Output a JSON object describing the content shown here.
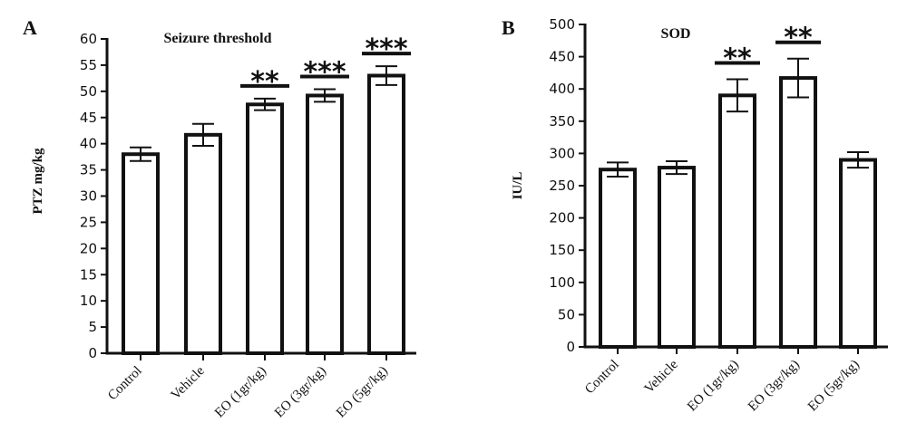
{
  "chart_data": [
    {
      "type": "bar",
      "panel_label": "A",
      "title": "Seizure threshold",
      "ylabel": "PTZ mg/kg",
      "xlabel": "",
      "ylim": [
        0,
        60
      ],
      "yticks": [
        0,
        5,
        10,
        15,
        20,
        25,
        30,
        35,
        40,
        45,
        50,
        55,
        60
      ],
      "categories": [
        "Control",
        "Vehicle",
        "EO (1gr/kg)",
        "EO (3gr/kg)",
        "EO (5gr/kg)"
      ],
      "values": [
        38,
        41.7,
        47.5,
        49.2,
        53
      ],
      "errors": [
        1.3,
        2.1,
        1.1,
        1.2,
        1.8
      ],
      "significance": [
        "",
        "",
        "**",
        "***",
        "***"
      ],
      "grid": false
    },
    {
      "type": "bar",
      "panel_label": "B",
      "title": "SOD",
      "ylabel": "IU/L",
      "xlabel": "",
      "ylim": [
        0,
        500
      ],
      "yticks": [
        0,
        50,
        100,
        150,
        200,
        250,
        300,
        350,
        400,
        450,
        500
      ],
      "categories": [
        "Control",
        "Vehicle",
        "EO (1gr/kg)",
        "EO (3gr/kg)",
        "EO (5gr/kg)"
      ],
      "values": [
        275,
        278,
        390,
        417,
        290
      ],
      "errors": [
        11,
        10,
        25,
        30,
        12
      ],
      "significance": [
        "",
        "",
        "**",
        "**",
        ""
      ],
      "grid": false
    }
  ]
}
